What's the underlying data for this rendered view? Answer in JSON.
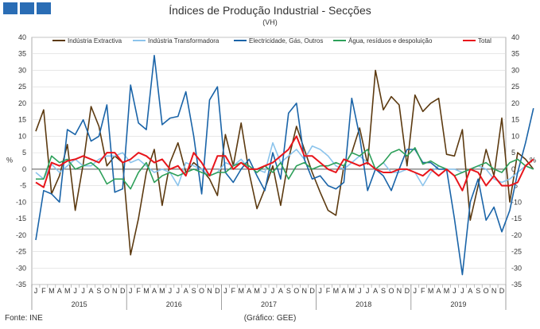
{
  "header": {
    "title": "Índices de Produção Industrial - Secções",
    "subtitle": "(VH)",
    "logo_colors": [
      "#2a6db5",
      "#2a6db5",
      "#2a6db5"
    ]
  },
  "footer": {
    "source": "Fonte: INE",
    "credit": "(Gráfico: GEE)"
  },
  "chart_data": {
    "type": "line",
    "title": "Índices de Produção Industrial - Secções",
    "subtitle": "(VH)",
    "ylabel_left": "%",
    "ylabel_right": "%",
    "ylim": [
      -35,
      40
    ],
    "yticks": [
      -35,
      -30,
      -25,
      -20,
      -15,
      -10,
      -5,
      0,
      5,
      10,
      15,
      20,
      25,
      30,
      35,
      40
    ],
    "grid": "horizontal",
    "legend_position": "top",
    "years": [
      "2015",
      "2016",
      "2017",
      "2018",
      "2019"
    ],
    "month_labels": [
      "J",
      "F",
      "M",
      "A",
      "M",
      "J",
      "J",
      "A",
      "S",
      "O",
      "N",
      "D"
    ],
    "series": [
      {
        "name": "Indústria Extractiva",
        "color": "#5c3a10",
        "values": [
          11.5,
          18,
          -7.5,
          -2,
          7.5,
          -12.5,
          1.5,
          19,
          13,
          1,
          4,
          2,
          -26,
          -15,
          -1,
          6,
          -11,
          2,
          8,
          -1,
          2,
          0,
          -3,
          -8,
          10.5,
          1,
          14,
          -1,
          -12,
          -6,
          1,
          -11,
          3,
          13,
          6,
          -1,
          -7,
          -12.5,
          -14,
          1,
          5,
          12.5,
          1.5,
          30,
          18,
          22,
          19.5,
          1,
          22.5,
          17.5,
          20,
          21.5,
          4.5,
          4,
          12,
          -15.5,
          -5,
          6,
          -2,
          15.5,
          -10,
          5,
          3,
          0
        ]
      },
      {
        "name": "Indústria Transformadora",
        "color": "#8cc4ec",
        "values": [
          -1,
          -3,
          1.5,
          -1,
          1,
          3,
          1,
          1,
          3,
          4,
          4,
          5,
          2,
          3,
          1,
          -1,
          0,
          -1,
          -5,
          2,
          1,
          0,
          -2,
          -1,
          2,
          1,
          3,
          0,
          0,
          -1,
          8,
          2,
          4,
          6,
          3,
          7,
          6,
          4,
          1,
          0,
          2,
          4,
          2,
          0,
          2,
          -1,
          -1,
          0,
          -1,
          -5,
          -1,
          1,
          0,
          0,
          -1,
          0,
          1,
          0,
          -3,
          -4,
          -3,
          -1,
          1,
          0
        ]
      },
      {
        "name": "Electricidade, Gás, Outros",
        "color": "#1a64a8",
        "values": [
          -21.5,
          -6.5,
          -7.5,
          -10,
          12,
          10.5,
          15,
          8.5,
          10,
          19.5,
          -7,
          -6,
          25.5,
          14,
          12,
          34.5,
          13.5,
          15.5,
          16,
          23.5,
          10,
          -7.5,
          21,
          25,
          -1,
          -4,
          0,
          3,
          -2,
          -6.5,
          5,
          -3,
          17,
          20,
          3,
          -3,
          -2,
          -5,
          -6,
          -4,
          21.5,
          10,
          -6.5,
          0,
          -2,
          -6.5,
          0,
          6,
          6,
          2,
          2,
          0,
          0,
          -15,
          -32,
          -10,
          -3,
          -15.5,
          -11.5,
          -19,
          -12.5,
          -1,
          8,
          18.5
        ]
      },
      {
        "name": "Água, resíduos e despoluição",
        "color": "#2ea05a",
        "values": [
          -3,
          -3,
          4,
          2,
          3,
          0,
          1,
          2,
          0,
          -4.5,
          -3,
          -3,
          -6,
          -1,
          2,
          -4,
          -2,
          -1,
          -2,
          -1,
          0,
          -1,
          -2,
          -1,
          -1,
          1,
          2,
          1,
          -1,
          1,
          -1,
          2,
          -3,
          1,
          2,
          0,
          1,
          1,
          2,
          1,
          5,
          4,
          6,
          0,
          2,
          5,
          6,
          4,
          6.5,
          1.5,
          2.5,
          1,
          0,
          -2,
          -1,
          0,
          1,
          2,
          0,
          -1,
          2,
          3,
          1,
          0
        ]
      },
      {
        "name": "Total",
        "color": "#e8151b",
        "values": [
          -4,
          -5.5,
          2,
          1,
          2.5,
          3,
          4,
          3,
          2,
          5,
          5,
          2,
          3,
          5,
          4,
          2,
          3,
          0,
          1,
          -2,
          5,
          2,
          -2,
          4,
          4,
          0,
          2,
          0,
          0,
          1,
          2,
          4,
          6,
          10,
          4,
          4,
          2,
          0,
          -1,
          3,
          2,
          1,
          2,
          0,
          -1,
          -1,
          0,
          0,
          -1,
          -2,
          0,
          -2,
          0,
          -2,
          -6.5,
          0,
          -1,
          -5,
          -2,
          -5,
          -5,
          -4,
          1,
          3
        ]
      }
    ]
  }
}
